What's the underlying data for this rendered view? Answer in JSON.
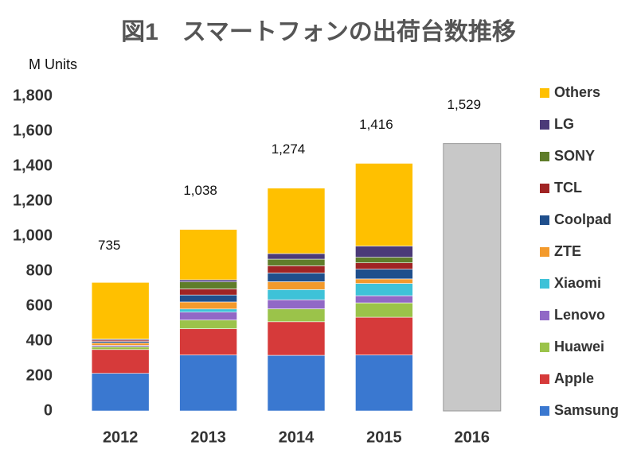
{
  "chart_data": {
    "type": "stacked-bar",
    "title": "図1　スマートフォンの出荷台数推移",
    "y_label": "M Units",
    "categories": [
      "2012",
      "2013",
      "2014",
      "2015",
      "2016"
    ],
    "ylim": [
      0,
      1800
    ],
    "yticks": [
      0,
      200,
      400,
      600,
      800,
      {
        "value": 1000,
        "label": "1,000"
      },
      {
        "value": 1200,
        "label": "1,200"
      },
      {
        "value": 1400,
        "label": "1,400"
      },
      {
        "value": 1600,
        "label": "1,600"
      },
      {
        "value": 1800,
        "label": "1,800"
      }
    ],
    "series": [
      {
        "name": "Samsung",
        "color": "#3a78d0",
        "values": [
          215,
          320,
          318,
          320,
          null
        ]
      },
      {
        "name": "Apple",
        "color": "#d63a3a",
        "values": [
          136,
          150,
          192,
          216,
          null
        ]
      },
      {
        "name": "Huawei",
        "color": "#9bc34a",
        "values": [
          16,
          50,
          74,
          82,
          null
        ]
      },
      {
        "name": "Lenovo",
        "color": "#9168c6",
        "values": [
          8,
          45,
          52,
          41,
          null
        ]
      },
      {
        "name": "Xiaomi",
        "color": "#3ec2d8",
        "values": [
          0,
          18,
          58,
          70,
          null
        ]
      },
      {
        "name": "ZTE",
        "color": "#f39a2c",
        "values": [
          14,
          40,
          45,
          26,
          null
        ]
      },
      {
        "name": "Coolpad",
        "color": "#1f4f8c",
        "values": [
          8,
          40,
          50,
          56,
          null
        ]
      },
      {
        "name": "TCL",
        "color": "#a02424",
        "values": [
          8,
          35,
          41,
          36,
          null
        ]
      },
      {
        "name": "SONY",
        "color": "#5f7d2a",
        "values": [
          0,
          40,
          38,
          32,
          null
        ]
      },
      {
        "name": "LG",
        "color": "#4b3a78",
        "values": [
          6,
          12,
          32,
          64,
          null
        ]
      },
      {
        "name": "Others",
        "color": "#ffc000",
        "values": [
          324,
          288,
          374,
          473,
          null
        ]
      }
    ],
    "totals": {
      "color": "#c8c8c8",
      "values": [
        735,
        1038,
        1274,
        1416,
        1529
      ],
      "value_labels": [
        "735",
        "1,038",
        "1,274",
        "1,416",
        "1,529"
      ]
    }
  }
}
